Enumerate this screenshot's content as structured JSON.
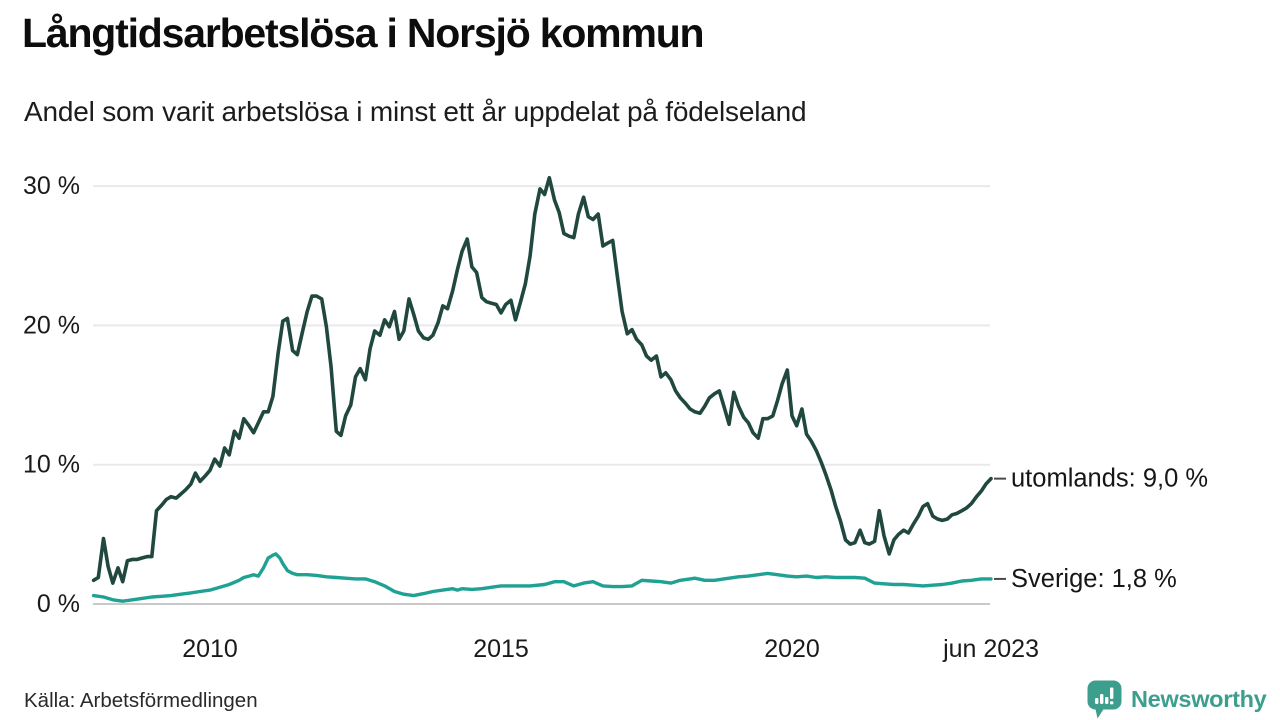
{
  "title": "Långtidsarbetslösa i Norsjö kommun",
  "subtitle": "Andel som varit arbetslösa i minst ett år uppdelat på födelseland",
  "source": "Källa: Arbetsförmedlingen",
  "branding": {
    "name": "Newsworthy",
    "color": "#3c9e8d",
    "icon": "bar-chart-speech-bubble-icon"
  },
  "chart_data": {
    "type": "line",
    "title": "Långtidsarbetslösa i Norsjö kommun",
    "subtitle": "Andel som varit arbetslösa i minst ett år uppdelat på födelseland",
    "unit": "%",
    "x_range": [
      2008.0,
      2023.45
    ],
    "ylim": [
      0,
      31
    ],
    "grid": "horizontal",
    "legend_position": "right-end-labels",
    "x_ticks": [
      {
        "t": 2010,
        "label": "2010"
      },
      {
        "t": 2015,
        "label": "2015"
      },
      {
        "t": 2020,
        "label": "2020"
      },
      {
        "t": 2023.42,
        "label": "jun 2023"
      }
    ],
    "y_ticks": [
      {
        "v": 0,
        "label": "0 %"
      },
      {
        "v": 10,
        "label": "10 %"
      },
      {
        "v": 20,
        "label": "20 %"
      },
      {
        "v": 30,
        "label": "30 %"
      }
    ],
    "colors": {
      "utomlands": "#20483f",
      "sverige": "#1fa193",
      "grid": "#e9e9e9",
      "axis": "#c9c9c9",
      "leader_dash": "#4a4a4a",
      "tick_text": "#1a1a1a"
    },
    "series": [
      {
        "name": "sverige",
        "label": "Sverige: 1,8 %",
        "last_value": "1,8 %",
        "color": "#1fa193",
        "points": [
          [
            2008.0,
            0.6
          ],
          [
            2008.17,
            0.5
          ],
          [
            2008.33,
            0.3
          ],
          [
            2008.5,
            0.2
          ],
          [
            2008.67,
            0.3
          ],
          [
            2008.83,
            0.4
          ],
          [
            2009.0,
            0.5
          ],
          [
            2009.17,
            0.55
          ],
          [
            2009.33,
            0.6
          ],
          [
            2009.5,
            0.7
          ],
          [
            2009.67,
            0.8
          ],
          [
            2009.83,
            0.9
          ],
          [
            2010.0,
            1.0
          ],
          [
            2010.17,
            1.2
          ],
          [
            2010.33,
            1.4
          ],
          [
            2010.5,
            1.7
          ],
          [
            2010.58,
            1.9
          ],
          [
            2010.67,
            2.0
          ],
          [
            2010.75,
            2.1
          ],
          [
            2010.83,
            2.0
          ],
          [
            2010.92,
            2.6
          ],
          [
            2011.0,
            3.3
          ],
          [
            2011.08,
            3.5
          ],
          [
            2011.13,
            3.6
          ],
          [
            2011.2,
            3.3
          ],
          [
            2011.25,
            2.9
          ],
          [
            2011.33,
            2.4
          ],
          [
            2011.42,
            2.2
          ],
          [
            2011.5,
            2.1
          ],
          [
            2011.67,
            2.1
          ],
          [
            2011.83,
            2.05
          ],
          [
            2012.0,
            1.95
          ],
          [
            2012.17,
            1.9
          ],
          [
            2012.33,
            1.85
          ],
          [
            2012.5,
            1.8
          ],
          [
            2012.67,
            1.8
          ],
          [
            2012.83,
            1.6
          ],
          [
            2013.0,
            1.3
          ],
          [
            2013.17,
            0.9
          ],
          [
            2013.33,
            0.7
          ],
          [
            2013.5,
            0.6
          ],
          [
            2013.67,
            0.75
          ],
          [
            2013.83,
            0.9
          ],
          [
            2014.0,
            1.0
          ],
          [
            2014.17,
            1.1
          ],
          [
            2014.25,
            1.0
          ],
          [
            2014.33,
            1.1
          ],
          [
            2014.5,
            1.05
          ],
          [
            2014.67,
            1.1
          ],
          [
            2014.83,
            1.2
          ],
          [
            2015.0,
            1.3
          ],
          [
            2015.25,
            1.3
          ],
          [
            2015.5,
            1.3
          ],
          [
            2015.75,
            1.4
          ],
          [
            2015.92,
            1.6
          ],
          [
            2016.08,
            1.6
          ],
          [
            2016.25,
            1.3
          ],
          [
            2016.42,
            1.5
          ],
          [
            2016.58,
            1.6
          ],
          [
            2016.75,
            1.3
          ],
          [
            2016.92,
            1.25
          ],
          [
            2017.08,
            1.25
          ],
          [
            2017.25,
            1.3
          ],
          [
            2017.42,
            1.7
          ],
          [
            2017.58,
            1.65
          ],
          [
            2017.75,
            1.6
          ],
          [
            2017.92,
            1.5
          ],
          [
            2018.08,
            1.7
          ],
          [
            2018.25,
            1.8
          ],
          [
            2018.33,
            1.85
          ],
          [
            2018.5,
            1.7
          ],
          [
            2018.67,
            1.7
          ],
          [
            2018.83,
            1.8
          ],
          [
            2018.92,
            1.85
          ],
          [
            2019.08,
            1.95
          ],
          [
            2019.25,
            2.0
          ],
          [
            2019.42,
            2.1
          ],
          [
            2019.58,
            2.2
          ],
          [
            2019.75,
            2.1
          ],
          [
            2019.92,
            2.0
          ],
          [
            2020.08,
            1.95
          ],
          [
            2020.25,
            2.0
          ],
          [
            2020.42,
            1.9
          ],
          [
            2020.58,
            1.95
          ],
          [
            2020.75,
            1.9
          ],
          [
            2020.92,
            1.9
          ],
          [
            2021.08,
            1.9
          ],
          [
            2021.25,
            1.85
          ],
          [
            2021.42,
            1.5
          ],
          [
            2021.58,
            1.45
          ],
          [
            2021.75,
            1.4
          ],
          [
            2021.92,
            1.4
          ],
          [
            2022.08,
            1.35
          ],
          [
            2022.25,
            1.3
          ],
          [
            2022.42,
            1.35
          ],
          [
            2022.58,
            1.4
          ],
          [
            2022.75,
            1.5
          ],
          [
            2022.92,
            1.65
          ],
          [
            2023.08,
            1.7
          ],
          [
            2023.25,
            1.8
          ],
          [
            2023.42,
            1.8
          ]
        ]
      },
      {
        "name": "utomlands",
        "label": "utomlands: 9,0 %",
        "last_value": "9,0 %",
        "color": "#20483f",
        "points": [
          [
            2008.0,
            1.7
          ],
          [
            2008.08,
            1.9
          ],
          [
            2008.17,
            4.7
          ],
          [
            2008.25,
            2.7
          ],
          [
            2008.33,
            1.5
          ],
          [
            2008.42,
            2.6
          ],
          [
            2008.5,
            1.6
          ],
          [
            2008.58,
            3.1
          ],
          [
            2008.67,
            3.2
          ],
          [
            2008.75,
            3.2
          ],
          [
            2008.83,
            3.3
          ],
          [
            2008.92,
            3.4
          ],
          [
            2009.0,
            3.4
          ],
          [
            2009.08,
            6.7
          ],
          [
            2009.17,
            7.1
          ],
          [
            2009.25,
            7.5
          ],
          [
            2009.33,
            7.7
          ],
          [
            2009.42,
            7.6
          ],
          [
            2009.5,
            7.9
          ],
          [
            2009.58,
            8.2
          ],
          [
            2009.67,
            8.6
          ],
          [
            2009.75,
            9.4
          ],
          [
            2009.83,
            8.8
          ],
          [
            2009.92,
            9.2
          ],
          [
            2010.0,
            9.6
          ],
          [
            2010.08,
            10.4
          ],
          [
            2010.17,
            9.9
          ],
          [
            2010.25,
            11.2
          ],
          [
            2010.33,
            10.7
          ],
          [
            2010.42,
            12.4
          ],
          [
            2010.5,
            11.9
          ],
          [
            2010.58,
            13.3
          ],
          [
            2010.67,
            12.8
          ],
          [
            2010.75,
            12.3
          ],
          [
            2010.83,
            13.0
          ],
          [
            2010.92,
            13.8
          ],
          [
            2011.0,
            13.8
          ],
          [
            2011.08,
            14.9
          ],
          [
            2011.17,
            18.0
          ],
          [
            2011.25,
            20.3
          ],
          [
            2011.33,
            20.5
          ],
          [
            2011.42,
            18.2
          ],
          [
            2011.5,
            17.9
          ],
          [
            2011.58,
            19.4
          ],
          [
            2011.67,
            21.0
          ],
          [
            2011.75,
            22.1
          ],
          [
            2011.83,
            22.1
          ],
          [
            2011.92,
            21.9
          ],
          [
            2012.0,
            19.9
          ],
          [
            2012.08,
            17.0
          ],
          [
            2012.17,
            12.4
          ],
          [
            2012.25,
            12.1
          ],
          [
            2012.33,
            13.5
          ],
          [
            2012.42,
            14.3
          ],
          [
            2012.5,
            16.3
          ],
          [
            2012.58,
            16.9
          ],
          [
            2012.67,
            16.1
          ],
          [
            2012.75,
            18.3
          ],
          [
            2012.83,
            19.6
          ],
          [
            2012.92,
            19.3
          ],
          [
            2013.0,
            20.4
          ],
          [
            2013.08,
            19.9
          ],
          [
            2013.17,
            21.0
          ],
          [
            2013.25,
            19.0
          ],
          [
            2013.33,
            19.6
          ],
          [
            2013.42,
            21.9
          ],
          [
            2013.5,
            20.8
          ],
          [
            2013.58,
            19.6
          ],
          [
            2013.67,
            19.1
          ],
          [
            2013.75,
            19.0
          ],
          [
            2013.83,
            19.3
          ],
          [
            2013.92,
            20.2
          ],
          [
            2014.0,
            21.4
          ],
          [
            2014.08,
            21.2
          ],
          [
            2014.17,
            22.5
          ],
          [
            2014.25,
            24.0
          ],
          [
            2014.33,
            25.3
          ],
          [
            2014.42,
            26.2
          ],
          [
            2014.5,
            24.2
          ],
          [
            2014.58,
            23.8
          ],
          [
            2014.67,
            22.0
          ],
          [
            2014.75,
            21.7
          ],
          [
            2014.83,
            21.6
          ],
          [
            2014.92,
            21.5
          ],
          [
            2015.0,
            20.9
          ],
          [
            2015.08,
            21.5
          ],
          [
            2015.17,
            21.8
          ],
          [
            2015.25,
            20.4
          ],
          [
            2015.33,
            21.6
          ],
          [
            2015.42,
            23.0
          ],
          [
            2015.5,
            25.0
          ],
          [
            2015.58,
            28.0
          ],
          [
            2015.67,
            29.8
          ],
          [
            2015.75,
            29.4
          ],
          [
            2015.83,
            30.6
          ],
          [
            2015.92,
            29.0
          ],
          [
            2016.0,
            28.1
          ],
          [
            2016.08,
            26.6
          ],
          [
            2016.17,
            26.4
          ],
          [
            2016.25,
            26.3
          ],
          [
            2016.33,
            28.0
          ],
          [
            2016.42,
            29.2
          ],
          [
            2016.5,
            27.8
          ],
          [
            2016.58,
            27.6
          ],
          [
            2016.67,
            28.0
          ],
          [
            2016.75,
            25.7
          ],
          [
            2016.83,
            25.9
          ],
          [
            2016.92,
            26.1
          ],
          [
            2017.0,
            23.5
          ],
          [
            2017.08,
            21.0
          ],
          [
            2017.17,
            19.4
          ],
          [
            2017.25,
            19.7
          ],
          [
            2017.33,
            19.0
          ],
          [
            2017.42,
            18.6
          ],
          [
            2017.5,
            17.8
          ],
          [
            2017.58,
            17.5
          ],
          [
            2017.67,
            17.8
          ],
          [
            2017.75,
            16.3
          ],
          [
            2017.83,
            16.6
          ],
          [
            2017.92,
            16.1
          ],
          [
            2018.0,
            15.3
          ],
          [
            2018.08,
            14.8
          ],
          [
            2018.17,
            14.4
          ],
          [
            2018.25,
            14.0
          ],
          [
            2018.33,
            13.8
          ],
          [
            2018.42,
            13.7
          ],
          [
            2018.5,
            14.2
          ],
          [
            2018.58,
            14.8
          ],
          [
            2018.67,
            15.1
          ],
          [
            2018.75,
            15.3
          ],
          [
            2018.83,
            14.2
          ],
          [
            2018.92,
            12.9
          ],
          [
            2019.0,
            15.2
          ],
          [
            2019.08,
            14.2
          ],
          [
            2019.17,
            13.4
          ],
          [
            2019.25,
            13.0
          ],
          [
            2019.33,
            12.3
          ],
          [
            2019.42,
            11.9
          ],
          [
            2019.5,
            13.3
          ],
          [
            2019.58,
            13.3
          ],
          [
            2019.67,
            13.5
          ],
          [
            2019.75,
            14.6
          ],
          [
            2019.83,
            15.8
          ],
          [
            2019.92,
            16.8
          ],
          [
            2020.0,
            13.5
          ],
          [
            2020.08,
            12.8
          ],
          [
            2020.17,
            14.0
          ],
          [
            2020.25,
            12.2
          ],
          [
            2020.33,
            11.7
          ],
          [
            2020.42,
            11.0
          ],
          [
            2020.5,
            10.2
          ],
          [
            2020.58,
            9.3
          ],
          [
            2020.67,
            8.2
          ],
          [
            2020.75,
            7.0
          ],
          [
            2020.83,
            6.0
          ],
          [
            2020.92,
            4.6
          ],
          [
            2021.0,
            4.3
          ],
          [
            2021.08,
            4.4
          ],
          [
            2021.17,
            5.3
          ],
          [
            2021.25,
            4.4
          ],
          [
            2021.33,
            4.3
          ],
          [
            2021.42,
            4.5
          ],
          [
            2021.5,
            6.7
          ],
          [
            2021.58,
            4.9
          ],
          [
            2021.67,
            3.6
          ],
          [
            2021.75,
            4.6
          ],
          [
            2021.83,
            5.0
          ],
          [
            2021.92,
            5.3
          ],
          [
            2022.0,
            5.1
          ],
          [
            2022.08,
            5.7
          ],
          [
            2022.17,
            6.3
          ],
          [
            2022.25,
            7.0
          ],
          [
            2022.33,
            7.2
          ],
          [
            2022.42,
            6.3
          ],
          [
            2022.5,
            6.1
          ],
          [
            2022.58,
            6.0
          ],
          [
            2022.67,
            6.1
          ],
          [
            2022.75,
            6.4
          ],
          [
            2022.83,
            6.5
          ],
          [
            2022.92,
            6.7
          ],
          [
            2023.0,
            6.9
          ],
          [
            2023.08,
            7.2
          ],
          [
            2023.17,
            7.7
          ],
          [
            2023.25,
            8.1
          ],
          [
            2023.33,
            8.6
          ],
          [
            2023.42,
            9.0
          ]
        ]
      }
    ]
  }
}
